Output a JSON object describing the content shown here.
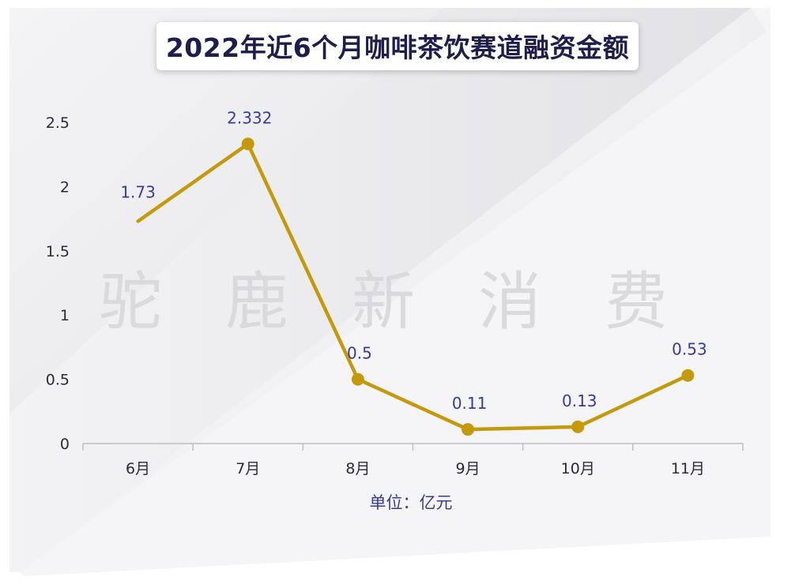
{
  "chart_data": {
    "type": "line",
    "title": "2022年近6个月咖啡茶饮赛道融资金额",
    "categories": [
      "6月",
      "7月",
      "8月",
      "9月",
      "10月",
      "11月"
    ],
    "series": [
      {
        "values": [
          1.73,
          2.332,
          0.5,
          0.11,
          0.13,
          0.53
        ]
      }
    ],
    "data_labels": [
      "1.73",
      "2.332",
      "0.5",
      "0.11",
      "0.13",
      "0.53"
    ],
    "y_ticks": [
      "0",
      "0.5",
      "1",
      "1.5",
      "2",
      "2.5"
    ],
    "ylim": [
      0,
      2.5
    ],
    "xlabel": "单位：亿元",
    "ylabel": "",
    "grid": false,
    "line_color": "#c49a0c",
    "watermark": "驼鹿新消费"
  }
}
